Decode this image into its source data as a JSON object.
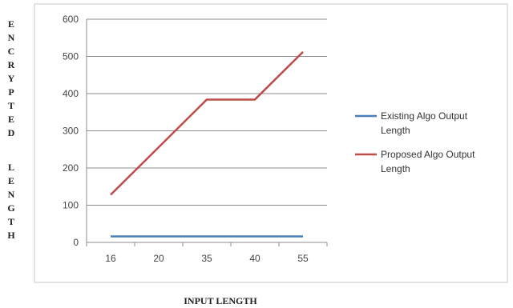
{
  "chart_data": {
    "type": "line",
    "categories": [
      "16",
      "20",
      "35",
      "40",
      "55"
    ],
    "series": [
      {
        "name": "Existing Algo Output Length",
        "values": [
          16,
          16,
          16,
          16,
          16
        ],
        "color": "#4a7ebb"
      },
      {
        "name": "Proposed Algo Output Length",
        "values": [
          128,
          256,
          384,
          384,
          512
        ],
        "color": "#be4b48"
      }
    ],
    "ylim": [
      0,
      600
    ],
    "yticks": [
      "0",
      "100",
      "200",
      "300",
      "400",
      "500",
      "600"
    ],
    "xlabel": "INPUT LENGTH",
    "ylabel": "ENCRYPTED LENGTH",
    "grid": true,
    "legend": "right"
  }
}
